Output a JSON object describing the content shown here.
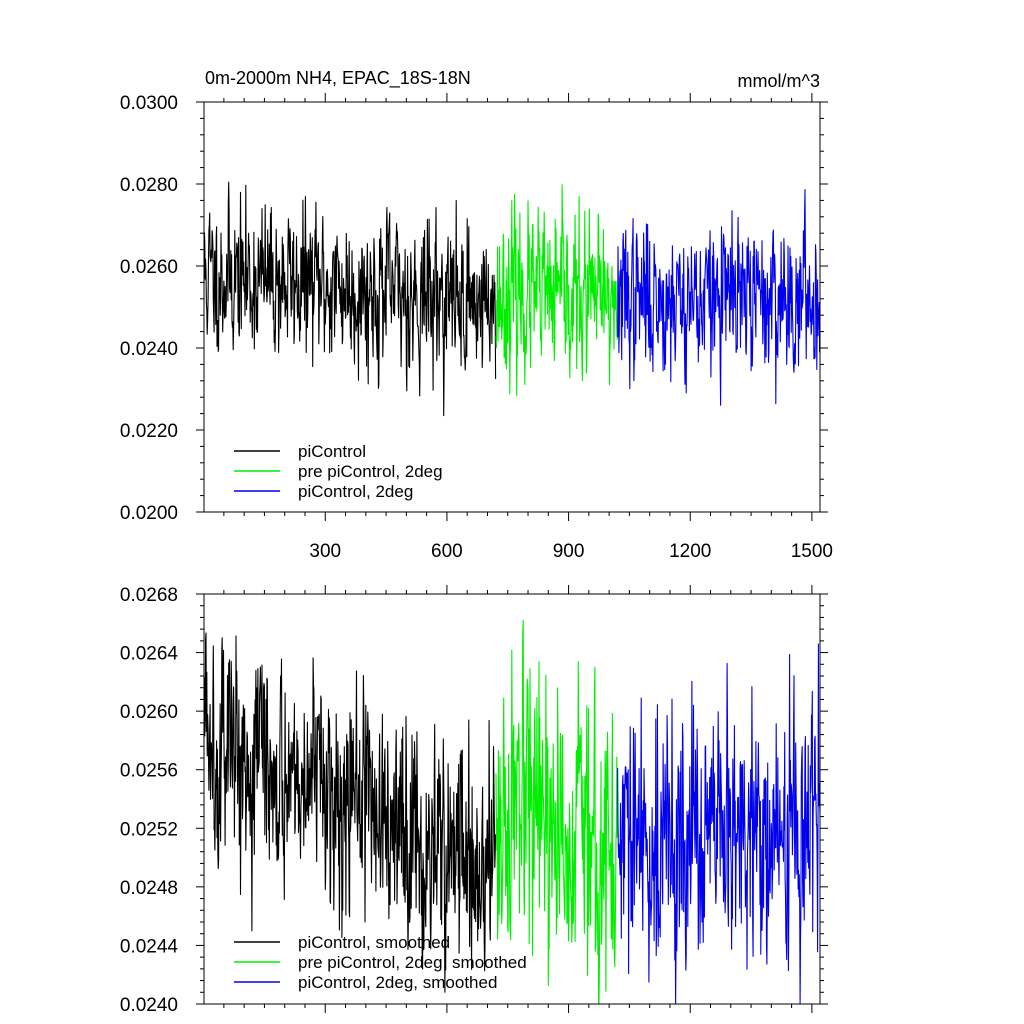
{
  "colors": {
    "piControl": "#000000",
    "pre_piControl_2deg": "#00ee00",
    "piControl_2deg": "#0000ee"
  },
  "chart_data": [
    {
      "type": "line",
      "title_left": "0m-2000m NH4, EPAC_18S-18N",
      "title_right": "mmol/m^3",
      "xlim": [
        1,
        1520
      ],
      "ylim": [
        0.02,
        0.03
      ],
      "xticks": [
        300,
        600,
        900,
        1200,
        1500
      ],
      "xtick_labels": [
        "300",
        "600",
        "900",
        "1200",
        "1500"
      ],
      "yticks": [
        0.02,
        0.022,
        0.024,
        0.026,
        0.028,
        0.03
      ],
      "ytick_labels": [
        "0.0200",
        "0.0220",
        "0.0240",
        "0.0260",
        "0.0280",
        "0.0300"
      ],
      "legend_position": "bottom-left",
      "series": [
        {
          "name": "piControl",
          "color": "#000000",
          "x": [
            1,
            720
          ],
          "mean": [
            0.0258,
            0.0251
          ],
          "noise_sd": 0.00085,
          "seed": 11
        },
        {
          "name": "pre piControl, 2deg",
          "color": "#00ee00",
          "x": [
            721,
            1020
          ],
          "mean": [
            0.0253,
            0.0251
          ],
          "noise_sd": 0.0009,
          "seed": 23
        },
        {
          "name": "piControl, 2deg",
          "color": "#0000ee",
          "x": [
            1021,
            1520
          ],
          "mean": [
            0.0252,
            0.0252
          ],
          "noise_sd": 0.00085,
          "seed": 37
        }
      ]
    },
    {
      "type": "line",
      "xlim": [
        1,
        1520
      ],
      "ylim": [
        0.024,
        0.0268
      ],
      "xticks": [
        300,
        600,
        900,
        1200,
        1500
      ],
      "yticks": [
        0.024,
        0.0244,
        0.0248,
        0.0252,
        0.0256,
        0.026,
        0.0264,
        0.0268
      ],
      "ytick_labels": [
        "0.0240",
        "0.0244",
        "0.0248",
        "0.0252",
        "0.0256",
        "0.0260",
        "0.0264",
        "0.0268"
      ],
      "legend_position": "bottom-left",
      "series": [
        {
          "name": "piControl, smoothed",
          "color": "#000000",
          "x": [
            1,
            720
          ],
          "mean": [
            0.0259,
            0.0249
          ],
          "noise_sd": 0.00035,
          "seed": 5
        },
        {
          "name": "pre piControl, 2deg, smoothed",
          "color": "#00ee00",
          "x": [
            721,
            1020
          ],
          "mean": [
            0.02525,
            0.02505
          ],
          "noise_sd": 0.00045,
          "seed": 17
        },
        {
          "name": "piControl, 2deg, smoothed",
          "color": "#0000ee",
          "x": [
            1021,
            1520
          ],
          "mean": [
            0.02505,
            0.02515
          ],
          "noise_sd": 0.0004,
          "seed": 29
        }
      ]
    }
  ]
}
